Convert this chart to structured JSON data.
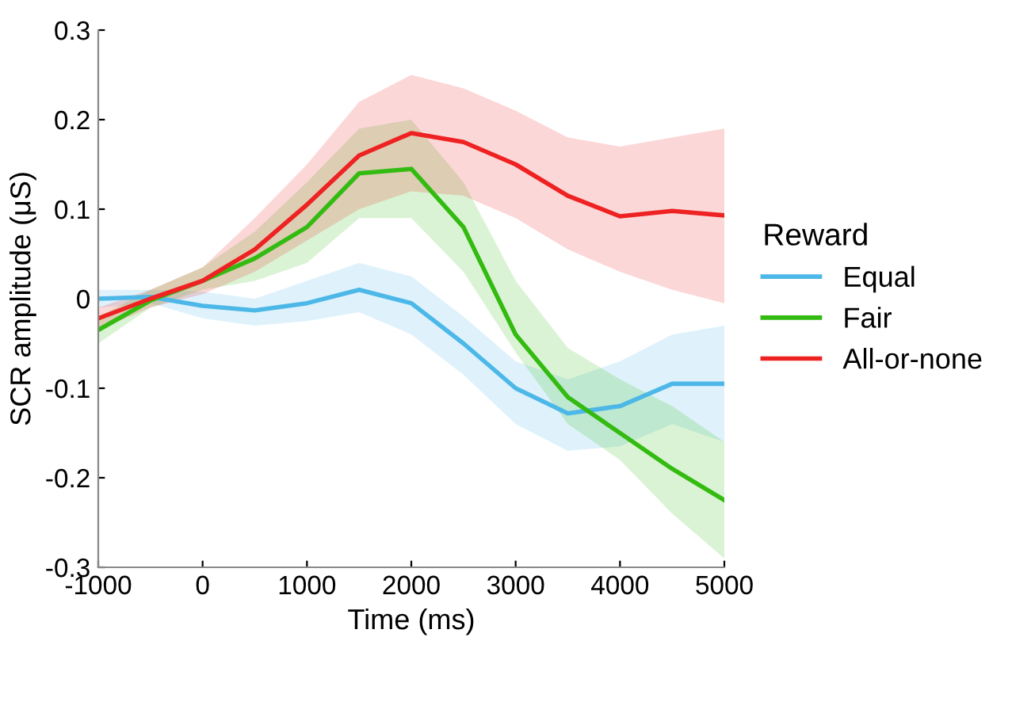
{
  "chart_data": {
    "type": "line",
    "xlabel": "Time (ms)",
    "ylabel": "SCR amplitude (μS)",
    "legend_title": "Reward",
    "legend": "right",
    "x": [
      -1000,
      -500,
      0,
      500,
      1000,
      1500,
      2000,
      2500,
      3000,
      3500,
      4000,
      4500,
      5000
    ],
    "series": [
      {
        "name": "Equal",
        "color": "#4db8e8",
        "values": [
          0.0,
          0.002,
          -0.008,
          -0.013,
          -0.005,
          0.01,
          -0.005,
          -0.05,
          -0.1,
          -0.128,
          -0.12,
          -0.095,
          -0.095
        ],
        "lower": [
          -0.01,
          -0.005,
          -0.022,
          -0.03,
          -0.025,
          -0.015,
          -0.04,
          -0.085,
          -0.14,
          -0.17,
          -0.165,
          -0.14,
          -0.16
        ],
        "upper": [
          0.01,
          0.01,
          0.008,
          0.0,
          0.02,
          0.04,
          0.025,
          -0.02,
          -0.07,
          -0.09,
          -0.07,
          -0.04,
          -0.03
        ]
      },
      {
        "name": "Fair",
        "color": "#33bb11",
        "values": [
          -0.035,
          -0.002,
          0.02,
          0.045,
          0.08,
          0.14,
          0.145,
          0.08,
          -0.04,
          -0.11,
          -0.15,
          -0.19,
          -0.225
        ],
        "lower": [
          -0.05,
          -0.01,
          0.01,
          0.02,
          0.04,
          0.09,
          0.09,
          0.03,
          -0.06,
          -0.14,
          -0.18,
          -0.24,
          -0.29
        ],
        "upper": [
          -0.02,
          0.01,
          0.035,
          0.075,
          0.13,
          0.19,
          0.2,
          0.13,
          0.02,
          -0.055,
          -0.09,
          -0.12,
          -0.16
        ]
      },
      {
        "name": "All-or-none",
        "color": "#ee2222",
        "values": [
          -0.022,
          0.0,
          0.02,
          0.055,
          0.105,
          0.16,
          0.185,
          0.175,
          0.15,
          0.115,
          0.092,
          0.098,
          0.093
        ],
        "lower": [
          -0.035,
          -0.01,
          0.005,
          0.03,
          0.065,
          0.1,
          0.12,
          0.115,
          0.09,
          0.055,
          0.03,
          0.01,
          -0.005
        ],
        "upper": [
          -0.01,
          0.01,
          0.035,
          0.09,
          0.15,
          0.22,
          0.25,
          0.235,
          0.21,
          0.18,
          0.17,
          0.18,
          0.19
        ]
      }
    ],
    "xlim": [
      -1000,
      5000
    ],
    "xticks": [
      -1000,
      0,
      1000,
      2000,
      3000,
      4000,
      5000
    ],
    "ylim": [
      -0.3,
      0.3
    ],
    "yticks": [
      -0.3,
      -0.2,
      -0.1,
      0,
      0.1,
      0.2,
      0.3
    ],
    "grid": false
  }
}
